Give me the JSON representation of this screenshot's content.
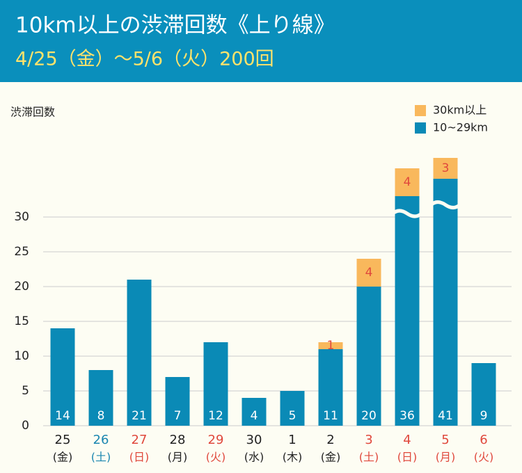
{
  "chart_data": {
    "type": "stacked_bar",
    "title": "10km以上の渋滞回数《上り線》",
    "subtitle": "4/25（金）～5/6（火）200回",
    "y_label": "渋滞回数",
    "categories": [
      "25",
      "26",
      "27",
      "28",
      "29",
      "30",
      "1",
      "2",
      "3",
      "4",
      "5",
      "6"
    ],
    "weekdays": [
      "(金)",
      "(土)",
      "(日)",
      "(月)",
      "(火)",
      "(水)",
      "(木)",
      "(金)",
      "(土)",
      "(日)",
      "(月)",
      "(火)"
    ],
    "category_colors": [
      "#222222",
      "#1a86b0",
      "#e0483c",
      "#222222",
      "#e0483c",
      "#222222",
      "#222222",
      "#222222",
      "#e0483c",
      "#e0483c",
      "#e0483c",
      "#e0483c"
    ],
    "series": [
      {
        "name": "10~29km",
        "color": "#0a8ab6",
        "label_color": "#ffffff",
        "values": [
          14,
          8,
          21,
          7,
          12,
          4,
          5,
          11,
          20,
          36,
          41,
          9
        ]
      },
      {
        "name": "30km以上",
        "color": "#f9b85c",
        "label_color": "#e0483c",
        "values": [
          null,
          null,
          null,
          null,
          null,
          null,
          null,
          1,
          4,
          4,
          3,
          null
        ]
      }
    ],
    "ylim": [
      0,
      30
    ],
    "yticks": [
      0,
      5,
      10,
      15,
      20,
      25,
      30
    ],
    "grid": true,
    "axis_break": true
  }
}
